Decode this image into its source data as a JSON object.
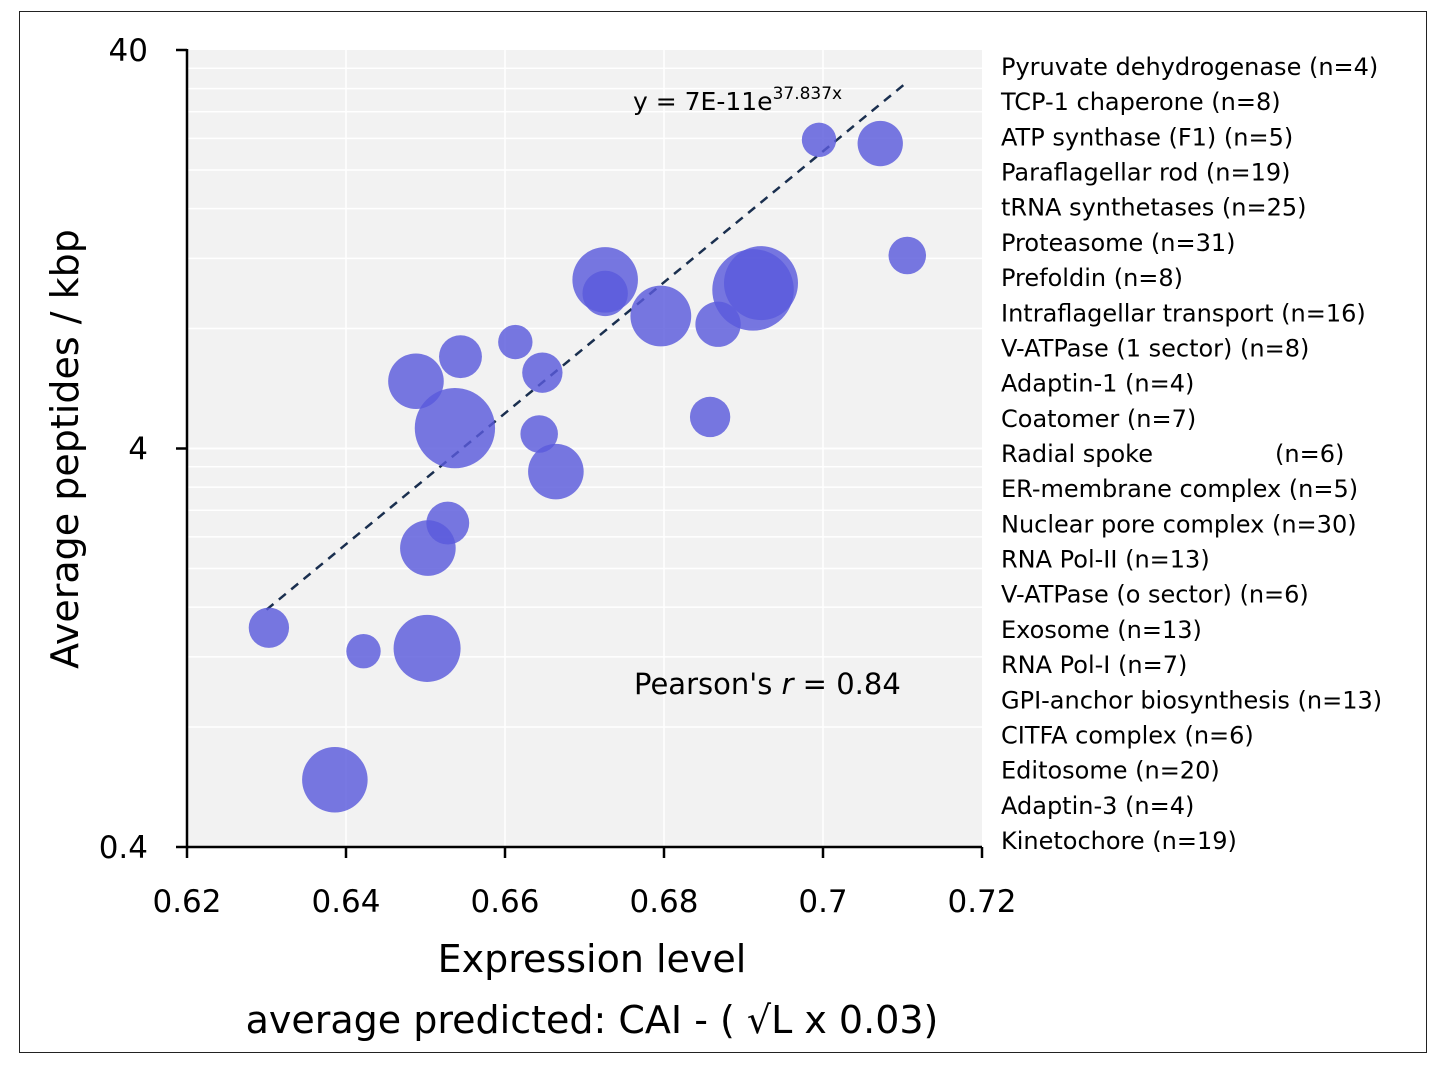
{
  "chart_data": {
    "type": "scatter",
    "xlabel": "Expression level",
    "xlabel_sub": "average predicted: CAI - ( √L x 0.03)",
    "ylabel": "Average peptides / kbp",
    "xlim": [
      0.62,
      0.72
    ],
    "ylim": [
      0.4,
      40
    ],
    "y_scale": "log",
    "x_ticks": [
      "0.62",
      "0.64",
      "0.66",
      "0.68",
      "0.7",
      "0.72"
    ],
    "y_ticks": [
      "40",
      "4",
      "0.4"
    ],
    "grid": true,
    "marker_color": "#5a5adc",
    "trendline": {
      "type": "exponential",
      "label_prefix": "y = 7E-11e",
      "label_exponent": "37.837x",
      "a": 7e-11,
      "b": 37.837,
      "x_range": [
        0.63,
        0.7105
      ],
      "color": "#1a2f4f"
    },
    "annotation": {
      "prefix": "Pearson's ",
      "r": "r",
      "suffix": " = 0.84"
    },
    "legend_entries": [
      "Pyruvate dehydrogenase (n=4)",
      "TCP-1 chaperone (n=8)",
      "ATP synthase (F1) (n=5)",
      "Paraflagellar rod (n=19)",
      "tRNA synthetases (n=25)",
      "Proteasome (n=31)",
      "Prefoldin (n=8)",
      "Intraflagellar transport (n=16)",
      "V-ATPase (1 sector) (n=8)",
      "Adaptin-1 (n=4)",
      "Coatomer (n=7)",
      "Radial spoke                (n=6)",
      "ER-membrane complex (n=5)",
      "Nuclear pore complex (n=30)",
      "RNA Pol-II (n=13)",
      "V-ATPase (o sector) (n=6)",
      "Exosome (n=13)",
      "RNA Pol-I (n=7)",
      "GPI-anchor biosynthesis (n=13)",
      "CITFA complex (n=6)",
      "Editosome (n=20)",
      "Adaptin-3 (n=4)",
      "Kinetochore (n=19)"
    ],
    "points": [
      {
        "x": 0.6995,
        "y": 23.8,
        "n": 4
      },
      {
        "x": 0.7072,
        "y": 23.3,
        "n": 8
      },
      {
        "x": 0.7106,
        "y": 12.2,
        "n": 5
      },
      {
        "x": 0.6726,
        "y": 10.6,
        "n": 19
      },
      {
        "x": 0.6922,
        "y": 10.4,
        "n": 25
      },
      {
        "x": 0.6912,
        "y": 10.0,
        "n": 31
      },
      {
        "x": 0.6726,
        "y": 9.8,
        "n": 8
      },
      {
        "x": 0.6796,
        "y": 8.6,
        "n": 16
      },
      {
        "x": 0.6868,
        "y": 8.2,
        "n": 8
      },
      {
        "x": 0.6613,
        "y": 7.4,
        "n": 4
      },
      {
        "x": 0.6544,
        "y": 6.8,
        "n": 7
      },
      {
        "x": 0.6647,
        "y": 6.2,
        "n": 6
      },
      {
        "x": 0.6643,
        "y": 4.35,
        "n": 5
      },
      {
        "x": 0.6537,
        "y": 4.5,
        "n": 30
      },
      {
        "x": 0.6488,
        "y": 5.9,
        "n": 13
      },
      {
        "x": 0.6858,
        "y": 4.8,
        "n": 6
      },
      {
        "x": 0.6664,
        "y": 3.5,
        "n": 13
      },
      {
        "x": 0.6528,
        "y": 2.6,
        "n": 7
      },
      {
        "x": 0.6503,
        "y": 2.25,
        "n": 13
      },
      {
        "x": 0.6303,
        "y": 1.42,
        "n": 6
      },
      {
        "x": 0.6502,
        "y": 1.26,
        "n": 20
      },
      {
        "x": 0.6422,
        "y": 1.24,
        "n": 4
      },
      {
        "x": 0.6386,
        "y": 0.59,
        "n": 19
      }
    ]
  }
}
